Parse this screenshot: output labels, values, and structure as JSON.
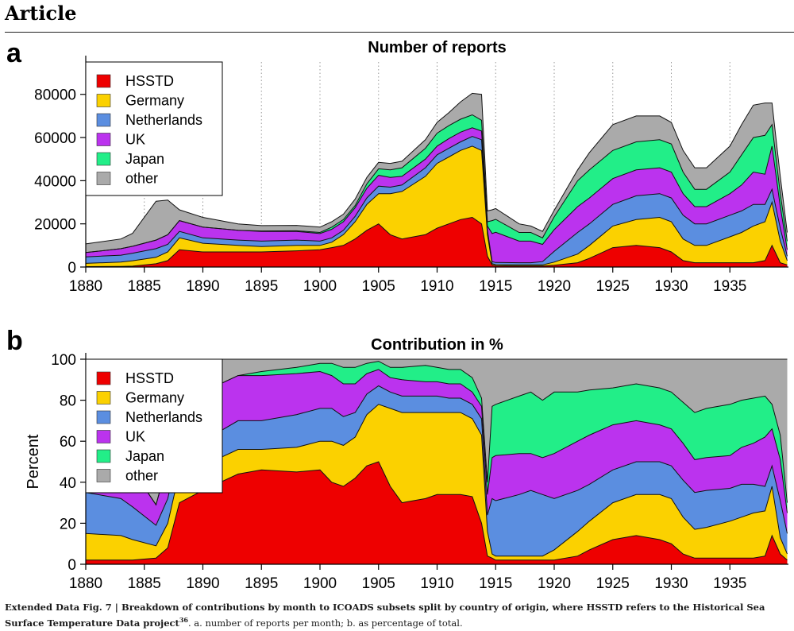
{
  "header": {
    "title": "Article"
  },
  "colors": {
    "HSSTD": "#ee0000",
    "Germany": "#fbd100",
    "Netherlands": "#5b8ee0",
    "UK": "#bb33ee",
    "Japan": "#22ee88",
    "other": "#aaaaaa"
  },
  "caption": {
    "label": "Extended Data Fig. 7 | ",
    "bold_text": "Breakdown of contributions by month to ICOADS subsets split by country of origin, where HSSTD refers to the Historical Sea Surface Temperature Data project",
    "ref": "36",
    "rest": ". a. number of reports per month; b. as percentage of total."
  },
  "chart_data": [
    {
      "panel_letter": "a",
      "type": "area",
      "stacked": true,
      "title": "Number of reports",
      "ylabel": "",
      "xlabel": "",
      "xlim": [
        1880,
        1940
      ],
      "ylim": [
        0,
        95000
      ],
      "yticks": [
        0,
        20000,
        40000,
        60000,
        80000
      ],
      "xticks": [
        1880,
        1885,
        1890,
        1895,
        1900,
        1905,
        1910,
        1915,
        1920,
        1925,
        1930,
        1935
      ],
      "grid": "vertical-dotted",
      "legend_position": "top-left",
      "x": [
        1880,
        1883,
        1884,
        1886,
        1887,
        1888,
        1890,
        1893,
        1895,
        1898,
        1900,
        1901,
        1902,
        1903,
        1904,
        1905,
        1906,
        1907,
        1909,
        1910,
        1911,
        1912,
        1913,
        1913.8,
        1914.3,
        1914.7,
        1915,
        1917,
        1918,
        1919,
        1920,
        1922,
        1923,
        1925,
        1927,
        1929,
        1930,
        1931,
        1932,
        1933,
        1935,
        1936,
        1937,
        1938,
        1938.6,
        1939.3,
        1939.9
      ],
      "series": [
        {
          "name": "HSSTD",
          "values": [
            200,
            300,
            400,
            1500,
            3000,
            8000,
            7000,
            7000,
            7000,
            7500,
            8000,
            9000,
            10000,
            13000,
            17000,
            20000,
            15000,
            13000,
            15000,
            18000,
            20000,
            22000,
            23000,
            20000,
            5000,
            1000,
            600,
            500,
            500,
            500,
            800,
            2000,
            4000,
            9000,
            10000,
            9000,
            7000,
            3000,
            2000,
            2000,
            2000,
            2000,
            2000,
            3000,
            10000,
            2000,
            1000
          ]
        },
        {
          "name": "Germany",
          "values": [
            1500,
            2000,
            2500,
            3000,
            4000,
            5500,
            4000,
            3000,
            2500,
            2500,
            2000,
            2500,
            5000,
            8000,
            12000,
            14000,
            19000,
            22000,
            27000,
            30000,
            31000,
            32000,
            33000,
            34000,
            10000,
            500,
            500,
            500,
            500,
            500,
            1500,
            4000,
            6000,
            10000,
            12000,
            14000,
            14000,
            10000,
            8000,
            8000,
            12000,
            14000,
            17000,
            18000,
            20000,
            10000,
            2000
          ]
        },
        {
          "name": "Netherlands",
          "values": [
            3000,
            3200,
            3500,
            4000,
            3500,
            3000,
            2500,
            2500,
            2500,
            2500,
            2000,
            2000,
            2000,
            2500,
            3000,
            3500,
            3000,
            3000,
            4000,
            4000,
            4000,
            4000,
            4500,
            5000,
            2000,
            1000,
            1000,
            1000,
            1000,
            1500,
            5000,
            10000,
            10000,
            10000,
            11000,
            11000,
            11000,
            11000,
            10000,
            10000,
            10000,
            10000,
            10000,
            8000,
            6000,
            6000,
            2000
          ]
        },
        {
          "name": "UK",
          "values": [
            2000,
            3000,
            3200,
            4000,
            4500,
            5000,
            5000,
            4500,
            4500,
            4000,
            3500,
            4000,
            4000,
            4000,
            4500,
            5000,
            4500,
            4000,
            4000,
            4000,
            4500,
            4500,
            4000,
            4000,
            2000,
            13000,
            14000,
            10000,
            10000,
            8000,
            10000,
            12000,
            12000,
            12000,
            12000,
            12000,
            12000,
            10000,
            8000,
            8000,
            10000,
            12000,
            15000,
            14000,
            20000,
            10000,
            3000
          ]
        },
        {
          "name": "Japan",
          "values": [
            0,
            0,
            0,
            0,
            0,
            0,
            0,
            0,
            200,
            300,
            500,
            1000,
            1000,
            1000,
            2000,
            3000,
            3500,
            4000,
            5000,
            6000,
            6000,
            6000,
            6000,
            5000,
            2000,
            6000,
            6000,
            4000,
            4000,
            3000,
            6000,
            12000,
            13000,
            13000,
            13000,
            13000,
            13000,
            10000,
            8000,
            8000,
            10000,
            14000,
            16000,
            18000,
            10000,
            6000,
            4000
          ]
        },
        {
          "name": "other",
          "values": [
            4000,
            4500,
            6000,
            18000,
            16000,
            5000,
            4500,
            3000,
            2500,
            2500,
            2500,
            2500,
            2500,
            3000,
            3000,
            3000,
            3000,
            3000,
            4000,
            5000,
            6000,
            8000,
            10000,
            12000,
            5000,
            5000,
            5000,
            4000,
            3000,
            3000,
            3000,
            5000,
            8000,
            12000,
            12000,
            11000,
            10000,
            10000,
            10000,
            10000,
            12000,
            14000,
            15000,
            15000,
            10000,
            8000,
            4000
          ]
        }
      ]
    },
    {
      "panel_letter": "b",
      "type": "area",
      "stacked": true,
      "title": "Contribution in %",
      "ylabel": "Percent",
      "xlabel": "",
      "xlim": [
        1880,
        1940
      ],
      "ylim": [
        0,
        100
      ],
      "yticks": [
        0,
        20,
        40,
        60,
        80,
        100
      ],
      "xticks": [
        1880,
        1885,
        1890,
        1895,
        1900,
        1905,
        1910,
        1915,
        1920,
        1925,
        1930,
        1935
      ],
      "grid": "vertical-dotted",
      "legend_position": "top-left",
      "x": [
        1880,
        1883,
        1884,
        1886,
        1887,
        1888,
        1890,
        1893,
        1895,
        1898,
        1900,
        1901,
        1902,
        1903,
        1904,
        1905,
        1906,
        1907,
        1909,
        1910,
        1911,
        1912,
        1913,
        1913.8,
        1914.3,
        1914.7,
        1915,
        1917,
        1918,
        1919,
        1920,
        1922,
        1923,
        1925,
        1927,
        1929,
        1930,
        1931,
        1932,
        1933,
        1935,
        1936,
        1937,
        1938,
        1938.6,
        1939.3,
        1939.9
      ],
      "series": [
        {
          "name": "HSSTD",
          "values": [
            2,
            2,
            2,
            3,
            8,
            30,
            36,
            44,
            46,
            45,
            46,
            40,
            38,
            42,
            48,
            50,
            38,
            30,
            32,
            34,
            34,
            34,
            33,
            20,
            4,
            3,
            2,
            2,
            2,
            2,
            2,
            4,
            7,
            12,
            14,
            12,
            10,
            5,
            3,
            3,
            3,
            3,
            3,
            4,
            14,
            5,
            2
          ]
        },
        {
          "name": "Germany",
          "values": [
            13,
            12,
            10,
            6,
            12,
            15,
            12,
            12,
            10,
            12,
            14,
            20,
            20,
            20,
            25,
            28,
            38,
            44,
            42,
            40,
            40,
            40,
            38,
            43,
            12,
            2,
            2,
            2,
            2,
            2,
            5,
            12,
            14,
            18,
            20,
            22,
            22,
            18,
            14,
            15,
            18,
            20,
            22,
            22,
            24,
            8,
            3
          ]
        },
        {
          "name": "Netherlands",
          "values": [
            20,
            18,
            16,
            10,
            12,
            12,
            12,
            14,
            14,
            16,
            16,
            16,
            14,
            12,
            10,
            9,
            8,
            8,
            8,
            8,
            7,
            7,
            7,
            8,
            8,
            27,
            27,
            30,
            32,
            30,
            25,
            20,
            18,
            16,
            16,
            16,
            16,
            18,
            18,
            18,
            16,
            16,
            14,
            12,
            10,
            18,
            10
          ]
        },
        {
          "name": "UK",
          "values": [
            15,
            17,
            18,
            10,
            18,
            20,
            24,
            22,
            22,
            20,
            18,
            16,
            16,
            14,
            10,
            8,
            7,
            8,
            7,
            7,
            7,
            7,
            6,
            6,
            10,
            20,
            22,
            20,
            18,
            18,
            22,
            24,
            24,
            22,
            20,
            18,
            18,
            18,
            16,
            16,
            16,
            18,
            20,
            24,
            18,
            20,
            10
          ]
        },
        {
          "name": "Japan",
          "values": [
            0,
            0,
            0,
            0,
            0,
            0,
            0,
            0,
            2,
            3,
            4,
            6,
            8,
            8,
            5,
            4,
            5,
            6,
            8,
            7,
            7,
            7,
            7,
            4,
            6,
            25,
            25,
            28,
            30,
            28,
            30,
            24,
            22,
            18,
            18,
            18,
            18,
            20,
            23,
            24,
            25,
            23,
            22,
            20,
            12,
            12,
            5
          ]
        },
        {
          "name": "other",
          "values": [
            50,
            51,
            54,
            71,
            50,
            23,
            16,
            8,
            6,
            4,
            2,
            2,
            4,
            4,
            2,
            1,
            4,
            4,
            3,
            4,
            5,
            5,
            9,
            19,
            60,
            23,
            22,
            18,
            16,
            20,
            16,
            16,
            15,
            14,
            12,
            14,
            16,
            21,
            26,
            24,
            22,
            20,
            19,
            18,
            22,
            37,
            70
          ]
        }
      ]
    }
  ]
}
